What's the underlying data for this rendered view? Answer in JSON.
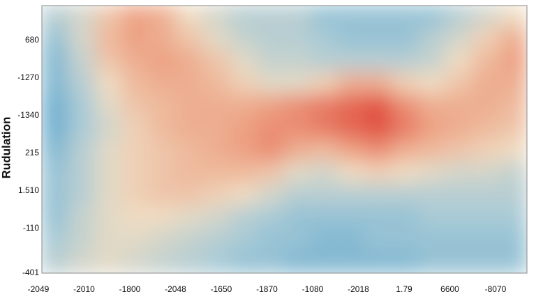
{
  "chart_data": {
    "type": "heatmap",
    "y_label": "Rudulation",
    "x_labels": [
      "-2049",
      "-2010",
      "-1800",
      "-2048",
      "-1650",
      "-1870",
      "-1080",
      "-2018",
      "1.79",
      "6600",
      "-8070"
    ],
    "y_labels": [
      "680",
      "-1270",
      "-1340",
      "215",
      "1.510",
      "-110",
      "-401"
    ],
    "zlim": [
      0,
      1
    ],
    "colors": [
      "#4f9fcc",
      "#a9cbd6",
      "#efdcc2",
      "#eda183",
      "#de3f33"
    ],
    "values": [
      [
        0.3,
        0.4,
        0.6,
        0.75,
        0.7,
        0.5,
        0.4,
        0.3,
        0.3,
        0.3,
        0.2,
        0.2,
        0.2,
        0.2,
        0.2,
        0.3,
        0.4,
        0.5
      ],
      [
        0.2,
        0.4,
        0.65,
        0.75,
        0.7,
        0.6,
        0.45,
        0.35,
        0.3,
        0.3,
        0.25,
        0.2,
        0.2,
        0.2,
        0.3,
        0.4,
        0.55,
        0.7
      ],
      [
        0.15,
        0.35,
        0.6,
        0.7,
        0.75,
        0.7,
        0.6,
        0.45,
        0.35,
        0.35,
        0.3,
        0.3,
        0.3,
        0.3,
        0.35,
        0.5,
        0.65,
        0.75
      ],
      [
        0.15,
        0.3,
        0.5,
        0.65,
        0.7,
        0.7,
        0.65,
        0.55,
        0.45,
        0.45,
        0.55,
        0.7,
        0.7,
        0.55,
        0.5,
        0.6,
        0.7,
        0.7
      ],
      [
        0.1,
        0.25,
        0.45,
        0.6,
        0.65,
        0.7,
        0.7,
        0.7,
        0.75,
        0.8,
        0.85,
        0.9,
        0.95,
        0.8,
        0.7,
        0.7,
        0.7,
        0.65
      ],
      [
        0.1,
        0.25,
        0.4,
        0.55,
        0.65,
        0.7,
        0.7,
        0.75,
        0.8,
        0.8,
        0.85,
        0.9,
        0.95,
        0.85,
        0.75,
        0.7,
        0.65,
        0.6
      ],
      [
        0.15,
        0.3,
        0.45,
        0.55,
        0.6,
        0.65,
        0.7,
        0.75,
        0.8,
        0.7,
        0.65,
        0.75,
        0.8,
        0.7,
        0.65,
        0.6,
        0.55,
        0.5
      ],
      [
        0.2,
        0.3,
        0.45,
        0.55,
        0.6,
        0.65,
        0.65,
        0.65,
        0.6,
        0.45,
        0.4,
        0.5,
        0.55,
        0.5,
        0.45,
        0.4,
        0.4,
        0.35
      ],
      [
        0.2,
        0.3,
        0.45,
        0.55,
        0.6,
        0.6,
        0.55,
        0.5,
        0.4,
        0.3,
        0.3,
        0.3,
        0.3,
        0.3,
        0.3,
        0.3,
        0.3,
        0.3
      ],
      [
        0.2,
        0.35,
        0.45,
        0.5,
        0.5,
        0.45,
        0.4,
        0.3,
        0.25,
        0.2,
        0.2,
        0.2,
        0.2,
        0.2,
        0.25,
        0.25,
        0.25,
        0.25
      ],
      [
        0.25,
        0.35,
        0.45,
        0.45,
        0.4,
        0.35,
        0.3,
        0.25,
        0.2,
        0.2,
        0.15,
        0.15,
        0.2,
        0.2,
        0.2,
        0.2,
        0.2,
        0.2
      ],
      [
        0.3,
        0.4,
        0.45,
        0.4,
        0.35,
        0.3,
        0.25,
        0.2,
        0.2,
        0.15,
        0.15,
        0.15,
        0.15,
        0.15,
        0.2,
        0.2,
        0.2,
        0.2
      ]
    ]
  }
}
